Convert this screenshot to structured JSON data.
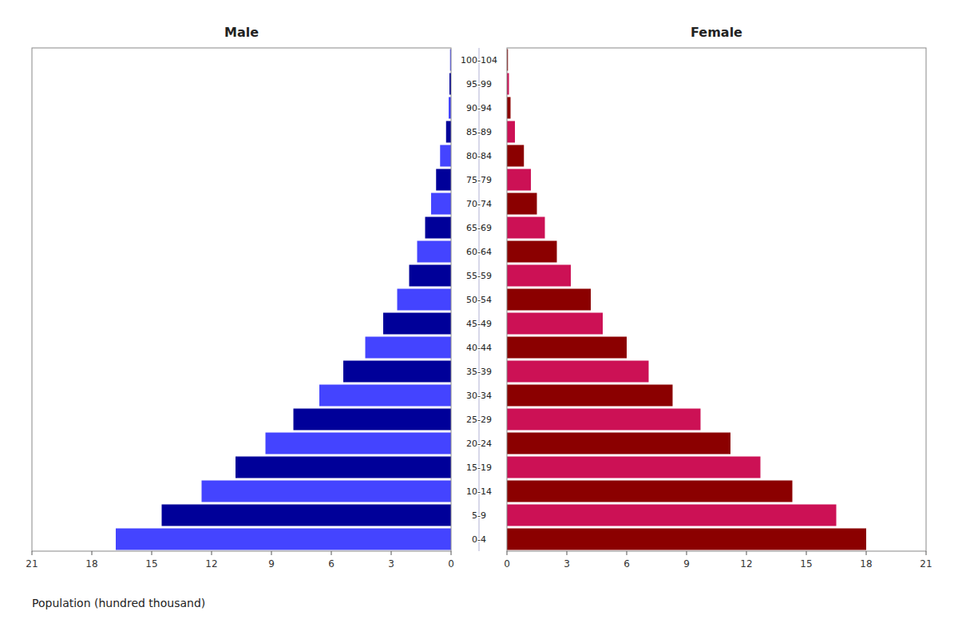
{
  "chart_data": {
    "type": "bar",
    "orientation": "horizontal",
    "x_label": "Population (hundred thousand)",
    "categories": [
      "0-4",
      "5-9",
      "10-14",
      "15-19",
      "20-24",
      "25-29",
      "30-34",
      "35-39",
      "40-44",
      "45-49",
      "50-54",
      "55-59",
      "60-64",
      "65-69",
      "70-74",
      "75-79",
      "80-84",
      "85-89",
      "90-94",
      "95-99",
      "100-104"
    ],
    "series": [
      {
        "name": "Male",
        "values": [
          16.8,
          14.5,
          12.5,
          10.8,
          9.3,
          7.9,
          6.6,
          5.4,
          4.3,
          3.4,
          2.7,
          2.1,
          1.7,
          1.3,
          1.0,
          0.75,
          0.55,
          0.25,
          0.12,
          0.08,
          0.05
        ],
        "colors": [
          "#4444FF",
          "#000099",
          "#4444FF",
          "#000099",
          "#4444FF",
          "#000099",
          "#4444FF",
          "#000099",
          "#4444FF",
          "#000099",
          "#4444FF",
          "#000099",
          "#4444FF",
          "#000099",
          "#4444FF",
          "#000099",
          "#4444FF",
          "#000099",
          "#4444FF",
          "#000099",
          "#4444FF"
        ]
      },
      {
        "name": "Female",
        "values": [
          18.0,
          16.5,
          14.3,
          12.7,
          11.2,
          9.7,
          8.3,
          7.1,
          6.0,
          4.8,
          4.2,
          3.2,
          2.5,
          1.9,
          1.5,
          1.2,
          0.85,
          0.4,
          0.18,
          0.1,
          0.05
        ],
        "colors": [
          "#8B0000",
          "#CC1155",
          "#8B0000",
          "#CC1155",
          "#8B0000",
          "#CC1155",
          "#8B0000",
          "#CC1155",
          "#8B0000",
          "#CC1155",
          "#8B0000",
          "#CC1155",
          "#8B0000",
          "#CC1155",
          "#8B0000",
          "#CC1155",
          "#8B0000",
          "#CC1155",
          "#8B0000",
          "#CC1155",
          "#8B0000"
        ]
      }
    ],
    "xlim": [
      0,
      21
    ],
    "xticks": [
      0,
      3,
      6,
      9,
      12,
      15,
      18,
      21
    ],
    "grid": false
  }
}
